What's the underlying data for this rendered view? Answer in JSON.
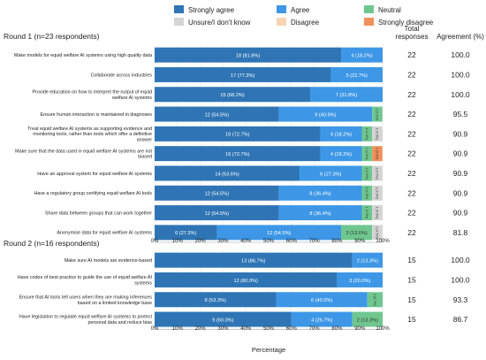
{
  "chart_data": {
    "type": "bar",
    "stacked": true,
    "orientation": "horizontal",
    "legend": [
      {
        "name": "Strongly agree",
        "color": "#2f75b5"
      },
      {
        "name": "Agree",
        "color": "#3d97e6"
      },
      {
        "name": "Neutral",
        "color": "#6fc78f"
      },
      {
        "name": "Unsure/I don't know",
        "color": "#d4d4d4"
      },
      {
        "name": "Disagree",
        "color": "#f9d3b4"
      },
      {
        "name": "Strongly disagree",
        "color": "#f0905a"
      }
    ],
    "legend_position": "top",
    "column_headers": {
      "total": "Total responses",
      "agreement": "Agreement (%)"
    },
    "xlabel": "Percentage",
    "xlim": [
      0,
      100
    ],
    "x_ticks": [
      "0%",
      "10%",
      "20%",
      "30%",
      "40%",
      "50%",
      "60%",
      "70%",
      "80%",
      "90%",
      "100%"
    ],
    "grid": true,
    "panels": [
      {
        "title": "Round 1 (n=23 respondents)",
        "rows": [
          {
            "label": [
              "Make models for equid welfare AI systems using high quality data"
            ],
            "segments": [
              {
                "category": "Strongly agree",
                "value": 81.8,
                "label": "18 (81.8%)"
              },
              {
                "category": "Agree",
                "value": 18.2,
                "label": "4 (18.2%)"
              }
            ],
            "total": "22",
            "agreement": "100.0"
          },
          {
            "label": [
              "Collaborate across industries"
            ],
            "segments": [
              {
                "category": "Strongly agree",
                "value": 77.3,
                "label": "17 (77.3%)"
              },
              {
                "category": "Agree",
                "value": 22.7,
                "label": "5 (22.7%)"
              }
            ],
            "total": "22",
            "agreement": "100.0"
          },
          {
            "label": [
              "Provide education on how to interpret the output of equid",
              "welfare AI systems"
            ],
            "segments": [
              {
                "category": "Strongly agree",
                "value": 68.2,
                "label": "15 (68.2%)"
              },
              {
                "category": "Agree",
                "value": 31.8,
                "label": "7 (31.8%)"
              }
            ],
            "total": "22",
            "agreement": "100.0"
          },
          {
            "label": [
              "Ensure human interaction is maintained in diagnoses"
            ],
            "segments": [
              {
                "category": "Strongly agree",
                "value": 54.5,
                "label": "12 (54.5%)"
              },
              {
                "category": "Agree",
                "value": 40.9,
                "label": "9 (40.9%)"
              },
              {
                "category": "Neutral",
                "value": 4.5,
                "label": "1 (4.5%)"
              }
            ],
            "total": "22",
            "agreement": "95.5"
          },
          {
            "label": [
              "Treat equid welfare AI systems as supporting evidence and",
              "monitoring tools, rather than tools which offer a definitive",
              "answer"
            ],
            "segments": [
              {
                "category": "Strongly agree",
                "value": 72.7,
                "label": "16 (72.7%)"
              },
              {
                "category": "Agree",
                "value": 18.2,
                "label": "4 (18.2%)"
              },
              {
                "category": "Neutral",
                "value": 4.5,
                "label": "1 (4.5%)"
              },
              {
                "category": "Unsure/I don't know",
                "value": 4.5,
                "label": "1 (4.5%)"
              }
            ],
            "total": "22",
            "agreement": "90.9"
          },
          {
            "label": [
              "Make sure that the data used in equid welfare AI systems are not",
              "biased"
            ],
            "segments": [
              {
                "category": "Strongly agree",
                "value": 72.7,
                "label": "16 (72.7%)"
              },
              {
                "category": "Agree",
                "value": 18.2,
                "label": "4 (18.2%)"
              },
              {
                "category": "Neutral",
                "value": 4.5,
                "label": "1 (4.5%)"
              },
              {
                "category": "Strongly disagree",
                "value": 4.5,
                "label": "1 (4.5%)"
              }
            ],
            "total": "22",
            "agreement": "90.9"
          },
          {
            "label": [
              "Have an approval system for equid welfare AI systems"
            ],
            "segments": [
              {
                "category": "Strongly agree",
                "value": 63.6,
                "label": "14 (63.6%)"
              },
              {
                "category": "Agree",
                "value": 27.3,
                "label": "6 (27.3%)"
              },
              {
                "category": "Neutral",
                "value": 4.5,
                "label": "1 (4.5%)"
              },
              {
                "category": "Unsure/I don't know",
                "value": 4.5,
                "label": "1 (4.5%)"
              }
            ],
            "total": "22",
            "agreement": "90.9"
          },
          {
            "label": [
              "Have a regulatory group certifying equid welfare AI tools"
            ],
            "segments": [
              {
                "category": "Strongly agree",
                "value": 54.5,
                "label": "12 (54.5%)"
              },
              {
                "category": "Agree",
                "value": 36.4,
                "label": "8 (36.4%)"
              },
              {
                "category": "Neutral",
                "value": 4.5,
                "label": "1 (4.5%)"
              },
              {
                "category": "Unsure/I don't know",
                "value": 4.5,
                "label": "1 (4.5%)"
              }
            ],
            "total": "22",
            "agreement": "90.9"
          },
          {
            "label": [
              "Share data between groups that can work together"
            ],
            "segments": [
              {
                "category": "Strongly agree",
                "value": 54.5,
                "label": "12 (54.5%)"
              },
              {
                "category": "Agree",
                "value": 36.4,
                "label": "8 (36.4%)"
              },
              {
                "category": "Neutral",
                "value": 4.5,
                "label": "1 (4.5%)"
              },
              {
                "category": "Unsure/I don't know",
                "value": 4.5,
                "label": "1 (4.5%)"
              }
            ],
            "total": "22",
            "agreement": "90.9"
          },
          {
            "label": [
              "Anonymise data for equid welfare AI systems"
            ],
            "segments": [
              {
                "category": "Strongly agree",
                "value": 27.3,
                "label": "6 (27.3%)"
              },
              {
                "category": "Agree",
                "value": 54.5,
                "label": "12 (54.5%)"
              },
              {
                "category": "Neutral",
                "value": 13.6,
                "label": "3 (13.6%)"
              },
              {
                "category": "Unsure/I don't know",
                "value": 4.5,
                "label": "1 (4.5%)"
              }
            ],
            "total": "22",
            "agreement": "81.8"
          }
        ]
      },
      {
        "title": "Round 2 (n=16 respondents)",
        "rows": [
          {
            "label": [
              "Make sure AI models are evidence-based"
            ],
            "segments": [
              {
                "category": "Strongly agree",
                "value": 86.7,
                "label": "13 (86.7%)"
              },
              {
                "category": "Agree",
                "value": 13.3,
                "label": "2 (13.3%)"
              }
            ],
            "total": "15",
            "agreement": "100.0"
          },
          {
            "label": [
              "Have codes of best practice to guide the use of equid welfare AI",
              "systems"
            ],
            "segments": [
              {
                "category": "Strongly agree",
                "value": 80.0,
                "label": "12 (80.0%)"
              },
              {
                "category": "Agree",
                "value": 20.0,
                "label": "3 (20.0%)"
              }
            ],
            "total": "15",
            "agreement": "100.0"
          },
          {
            "label": [
              "Ensure that AI tools tell users when they are making inferences",
              "based on a limited knowledge base"
            ],
            "segments": [
              {
                "category": "Strongly agree",
                "value": 53.3,
                "label": "8 (53.3%)"
              },
              {
                "category": "Agree",
                "value": 40.0,
                "label": "6 (40.0%)"
              },
              {
                "category": "Neutral",
                "value": 6.7,
                "label": "1 (6.7%)"
              }
            ],
            "total": "15",
            "agreement": "93.3"
          },
          {
            "label": [
              "Have legislation to regulate equid welfare AI systems to protect",
              "personal data and reduce bias"
            ],
            "segments": [
              {
                "category": "Strongly agree",
                "value": 60.0,
                "label": "9 (60.0%)"
              },
              {
                "category": "Agree",
                "value": 26.7,
                "label": "4 (26.7%)"
              },
              {
                "category": "Neutral",
                "value": 13.3,
                "label": "2 (13.3%)"
              }
            ],
            "total": "15",
            "agreement": "86.7"
          }
        ]
      }
    ]
  }
}
